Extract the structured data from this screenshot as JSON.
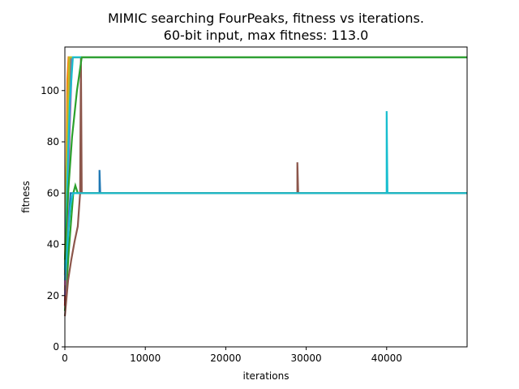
{
  "chart_data": {
    "type": "line",
    "title": "MIMIC searching FourPeaks, fitness vs iterations.",
    "subtitle": "60-bit input, max fitness: 113.0",
    "xlabel": "iterations",
    "ylabel": "fitness",
    "xlim": [
      0,
      50000
    ],
    "ylim": [
      0,
      117
    ],
    "xticks": [
      0,
      10000,
      20000,
      30000,
      40000
    ],
    "yticks": [
      0,
      20,
      40,
      60,
      80,
      100
    ],
    "grid": false,
    "legend": "none",
    "colors": [
      "#1f77b4",
      "#ff7f0e",
      "#2ca02c",
      "#d62728",
      "#9467bd",
      "#8c564b",
      "#e377c2",
      "#7f7f7f",
      "#bcbd22",
      "#17becf"
    ],
    "series": [
      {
        "color": "#1f77b4",
        "points": [
          [
            0,
            18
          ],
          [
            250,
            30
          ],
          [
            450,
            47
          ],
          [
            700,
            60
          ],
          [
            4300,
            60
          ],
          [
            4300,
            69
          ],
          [
            4400,
            60
          ],
          [
            50000,
            60
          ]
        ]
      },
      {
        "color": "#ff7f0e",
        "points": [
          [
            0,
            22
          ],
          [
            150,
            60
          ],
          [
            300,
            104
          ],
          [
            450,
            113
          ],
          [
            50000,
            113
          ]
        ]
      },
      {
        "color": "#2ca02c",
        "points": [
          [
            0,
            14
          ],
          [
            250,
            26
          ],
          [
            500,
            38
          ],
          [
            800,
            50
          ],
          [
            1050,
            60
          ],
          [
            1300,
            63
          ],
          [
            1600,
            60
          ],
          [
            50000,
            60
          ]
        ]
      },
      {
        "color": "#d62728",
        "points": [
          [
            0,
            16
          ],
          [
            200,
            40
          ],
          [
            400,
            72
          ],
          [
            600,
            100
          ],
          [
            800,
            113
          ],
          [
            50000,
            113
          ]
        ]
      },
      {
        "color": "#9467bd",
        "points": [
          [
            0,
            20
          ],
          [
            300,
            47
          ],
          [
            600,
            85
          ],
          [
            900,
            113
          ],
          [
            50000,
            113
          ]
        ]
      },
      {
        "color": "#8c564b",
        "points": [
          [
            0,
            12
          ],
          [
            400,
            26
          ],
          [
            800,
            34
          ],
          [
            1200,
            41
          ],
          [
            1600,
            47
          ],
          [
            1900,
            60
          ],
          [
            2000,
            113
          ],
          [
            2100,
            60
          ],
          [
            28900,
            60
          ],
          [
            28900,
            72
          ],
          [
            29000,
            60
          ],
          [
            50000,
            60
          ]
        ]
      },
      {
        "color": "#e377c2",
        "points": [
          [
            0,
            24
          ],
          [
            150,
            60
          ],
          [
            300,
            80
          ],
          [
            500,
            100
          ],
          [
            650,
            113
          ],
          [
            50000,
            113
          ]
        ]
      },
      {
        "color": "#7f7f7f",
        "points": [
          [
            0,
            28
          ],
          [
            250,
            62
          ],
          [
            500,
            90
          ],
          [
            700,
            113
          ],
          [
            50000,
            113
          ]
        ]
      },
      {
        "color": "#bcbd22",
        "points": [
          [
            0,
            32
          ],
          [
            200,
            70
          ],
          [
            400,
            95
          ],
          [
            550,
            113
          ],
          [
            50000,
            113
          ]
        ]
      },
      {
        "color": "#17becf",
        "points": [
          [
            0,
            30
          ],
          [
            300,
            65
          ],
          [
            600,
            95
          ],
          [
            1000,
            113
          ],
          [
            50000,
            113
          ]
        ]
      },
      {
        "color": "#17becf",
        "points": [
          [
            0,
            26
          ],
          [
            300,
            40
          ],
          [
            700,
            55
          ],
          [
            1000,
            60
          ],
          [
            40000,
            60
          ],
          [
            40000,
            92
          ],
          [
            40100,
            60
          ],
          [
            50000,
            60
          ]
        ]
      },
      {
        "color": "#2ca02c",
        "points": [
          [
            0,
            34
          ],
          [
            400,
            60
          ],
          [
            900,
            82
          ],
          [
            1500,
            100
          ],
          [
            2100,
            113
          ],
          [
            50000,
            113
          ]
        ]
      }
    ]
  }
}
